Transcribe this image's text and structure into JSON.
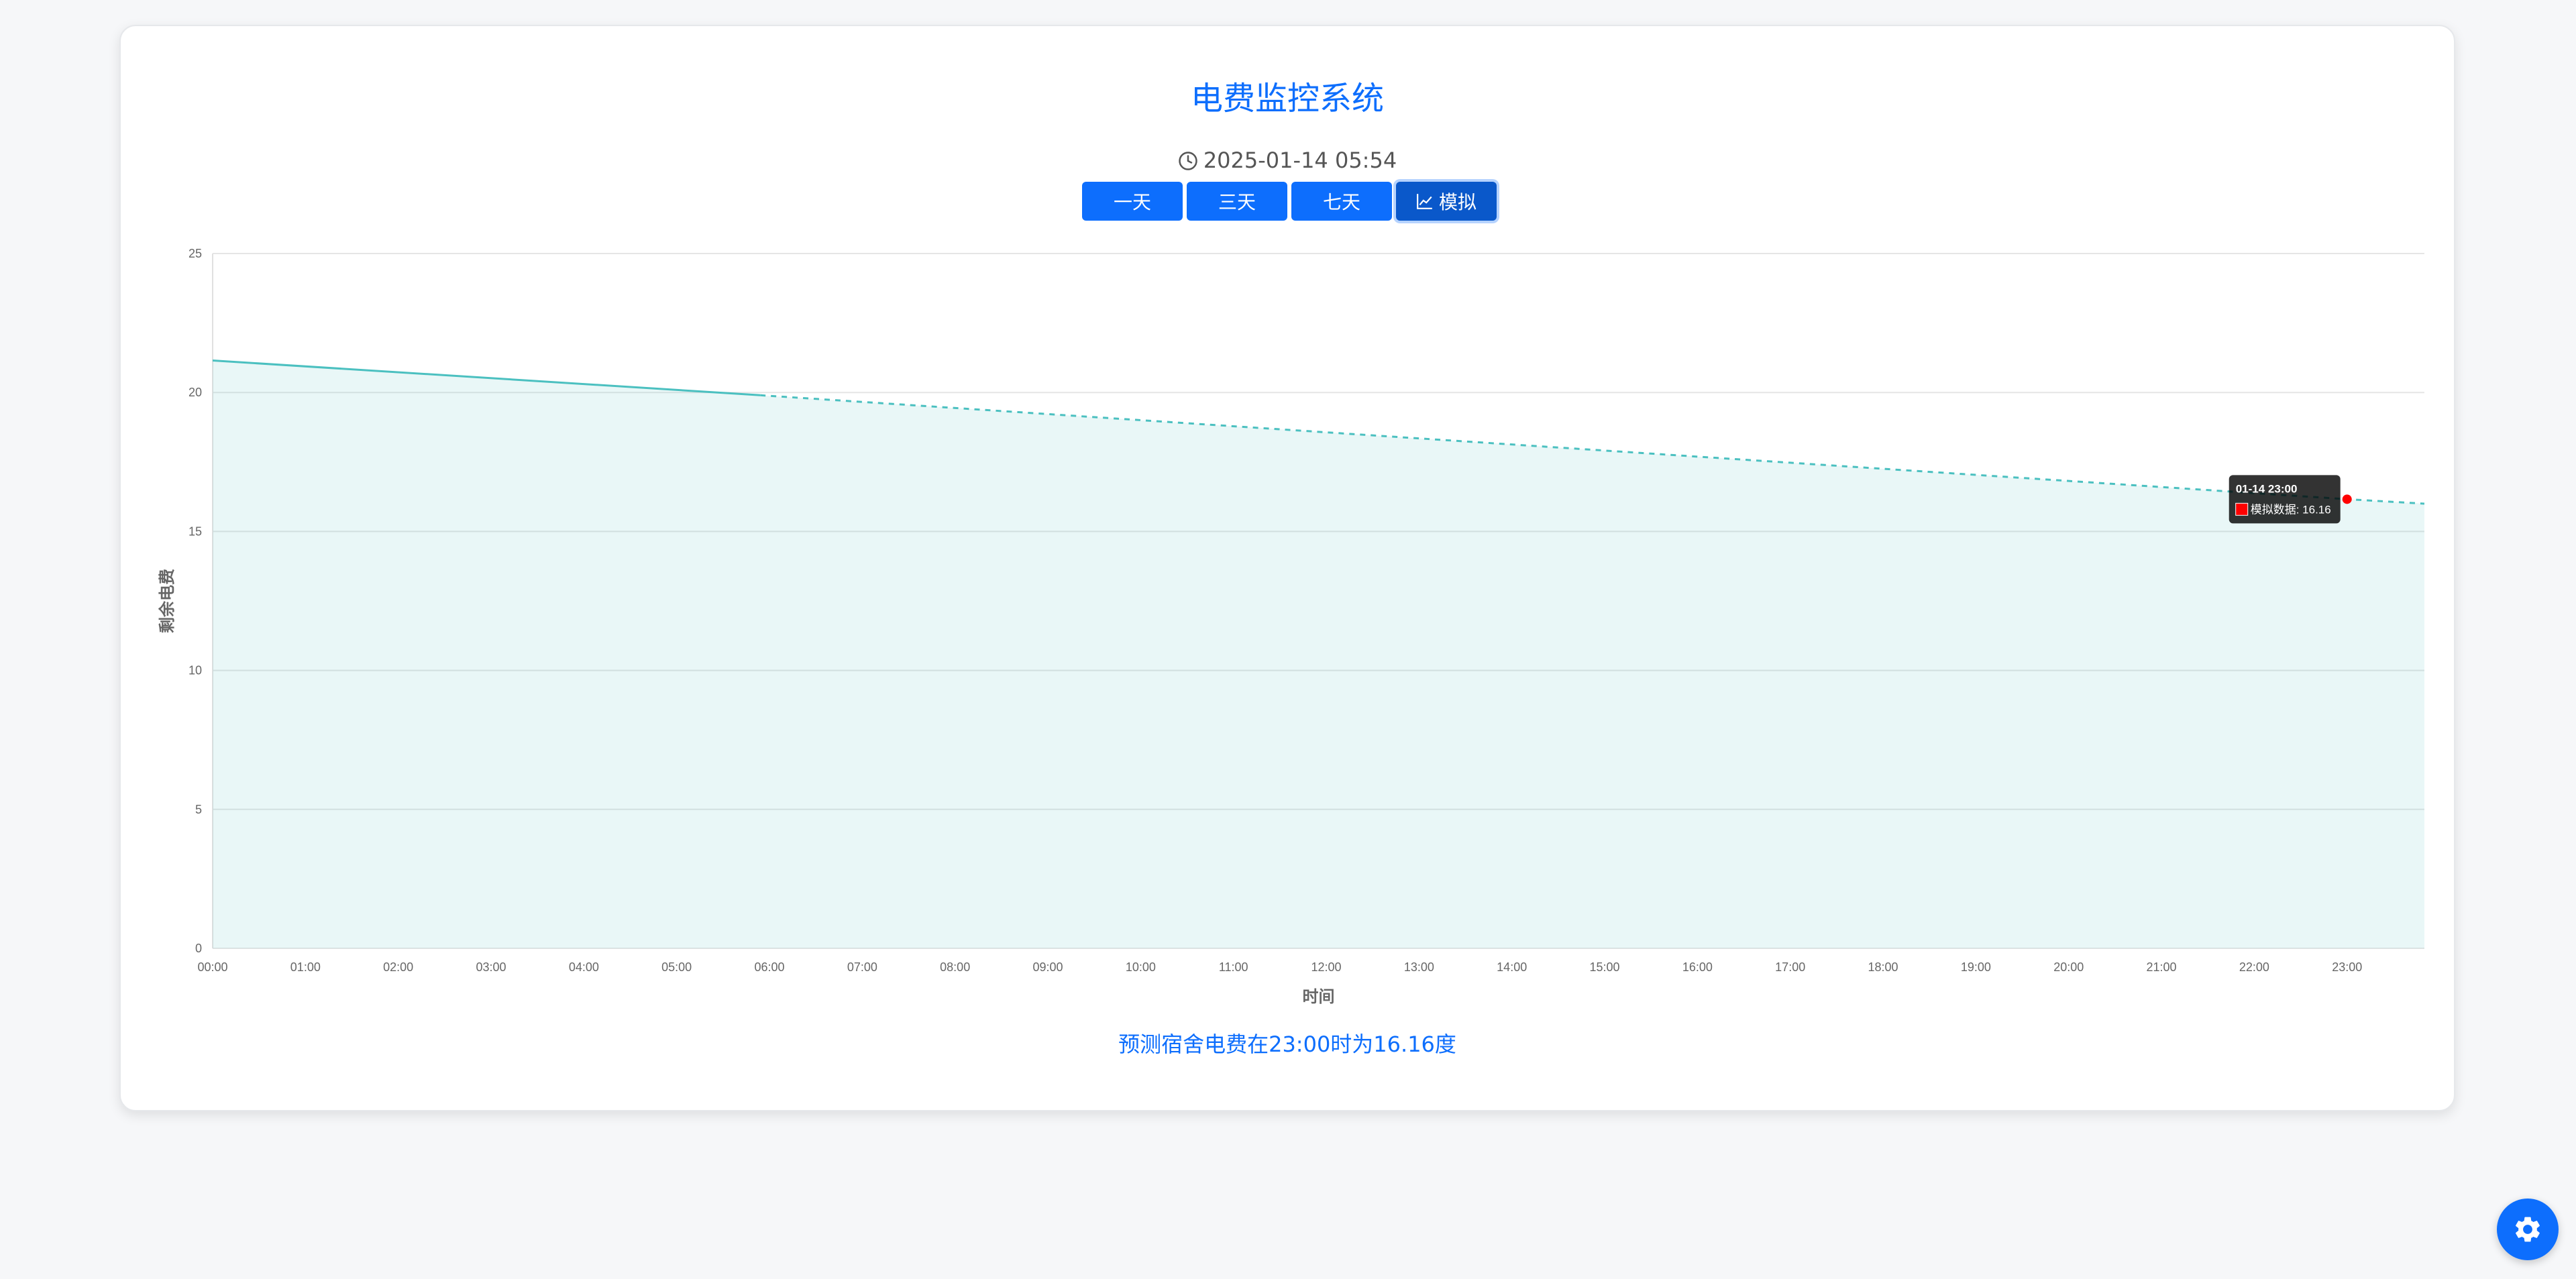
{
  "header": {
    "title": "电费监控系统",
    "datetime": "2025-01-14 05:54",
    "clock_icon": "clock-icon"
  },
  "range_buttons": [
    {
      "label": "一天",
      "active": false
    },
    {
      "label": "三天",
      "active": false
    },
    {
      "label": "七天",
      "active": false
    },
    {
      "label": "模拟",
      "active": true,
      "icon": "line-chart-icon"
    }
  ],
  "chart_data": {
    "type": "line",
    "xlabel": "时间",
    "ylabel": "剩余电费",
    "ylim": [
      0,
      25
    ],
    "yticks": [
      0,
      5,
      10,
      15,
      20,
      25
    ],
    "categories": [
      "00:00",
      "01:00",
      "02:00",
      "03:00",
      "04:00",
      "05:00",
      "06:00",
      "07:00",
      "08:00",
      "09:00",
      "10:00",
      "11:00",
      "12:00",
      "13:00",
      "14:00",
      "15:00",
      "16:00",
      "17:00",
      "18:00",
      "19:00",
      "20:00",
      "21:00",
      "22:00",
      "23:00"
    ],
    "x_range": [
      "00:00",
      "23:50"
    ],
    "grid": true,
    "series": [
      {
        "style": "solid",
        "color": "#4bc0c0",
        "fill": true,
        "points": [
          [
            "00:00",
            21.15
          ],
          [
            "05:54",
            19.9
          ]
        ]
      },
      {
        "name": "模拟数据",
        "style": "dashed",
        "color": "#4bc0c0",
        "fill": true,
        "points": [
          [
            "05:54",
            19.9
          ],
          [
            "23:00",
            16.16
          ],
          [
            "23:50",
            16.0
          ]
        ]
      }
    ],
    "tooltip": {
      "title": "01-14 23:00",
      "label": "模拟数据: 16.16",
      "point": [
        "23:00",
        16.16
      ],
      "marker_color": "#ff0000"
    }
  },
  "prediction_text": "预测宿舍电费在23:00时为16.16度",
  "settings_button": {
    "icon": "gear-icon"
  }
}
